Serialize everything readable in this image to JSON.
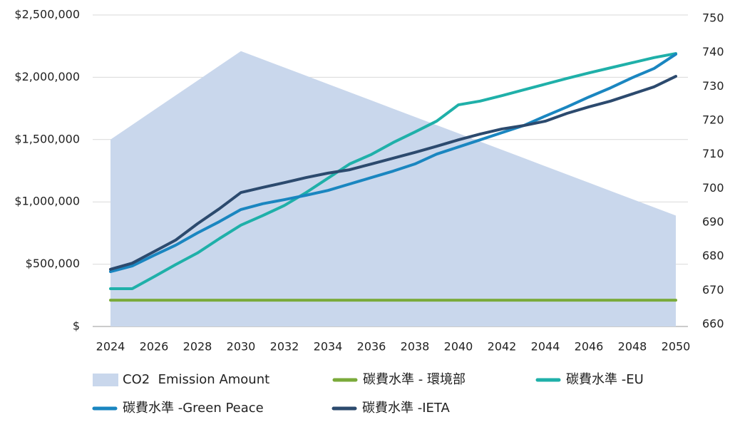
{
  "chart_data": {
    "type": "line",
    "x": [
      2024,
      2025,
      2026,
      2027,
      2028,
      2029,
      2030,
      2031,
      2032,
      2033,
      2034,
      2035,
      2036,
      2037,
      2038,
      2039,
      2040,
      2041,
      2042,
      2043,
      2044,
      2045,
      2046,
      2047,
      2048,
      2049,
      2050
    ],
    "xlim": [
      2024,
      2050
    ],
    "xticks": [
      2024,
      2026,
      2028,
      2030,
      2032,
      2034,
      2036,
      2038,
      2040,
      2042,
      2044,
      2046,
      2048,
      2050
    ],
    "ylim": [
      0,
      2500000
    ],
    "yticks": [
      {
        "value": 0,
        "label": "$"
      },
      {
        "value": 500000,
        "label": "$500,000"
      },
      {
        "value": 1000000,
        "label": "$1,000,000"
      },
      {
        "value": 1500000,
        "label": "$1,500,000"
      },
      {
        "value": 2000000,
        "label": "$2,000,000"
      },
      {
        "value": 2500000,
        "label": "$2,500,000"
      }
    ],
    "y2lim": [
      660,
      750
    ],
    "y2ticks": [
      660,
      670,
      680,
      690,
      700,
      710,
      720,
      730,
      740,
      750
    ],
    "grid": true,
    "legend": "bottom",
    "series": [
      {
        "name": "CO2  Emission Amount",
        "type": "area",
        "color": "#c9d7ec",
        "values": [
          1500000,
          1618000,
          1737000,
          1855000,
          1973000,
          2092000,
          2210000,
          2144000,
          2078000,
          2012000,
          1946000,
          1880000,
          1814000,
          1748000,
          1682000,
          1616000,
          1550000,
          1484000,
          1418000,
          1352000,
          1286000,
          1220000,
          1154000,
          1088000,
          1022000,
          956000,
          890000
        ]
      },
      {
        "name": "碳費水準 - 環境部",
        "type": "line",
        "axis": "y2",
        "color": "#7aaa3a",
        "values": [
          667.1,
          667.1,
          667.1,
          667.1,
          667.1,
          667.1,
          667.1,
          667.1,
          667.1,
          667.1,
          667.1,
          667.1,
          667.1,
          667.1,
          667.1,
          667.1,
          667.1,
          667.1,
          667.1,
          667.1,
          667.1,
          667.1,
          667.1,
          667.1,
          667.1,
          667.1,
          667.1
        ]
      },
      {
        "name": "碳費水準 -EU",
        "type": "line",
        "axis": "y2",
        "color": "#1fb0a9",
        "values": [
          670.5,
          670.5,
          674,
          677.6,
          681,
          685.2,
          689.2,
          692,
          695,
          698.8,
          703,
          707.2,
          710,
          713.5,
          716.6,
          719.8,
          724.6,
          725.7,
          727.3,
          729,
          730.7,
          732.4,
          734,
          735.5,
          737,
          738.5,
          739.7
        ]
      },
      {
        "name": "碳費水準 -Green Peace",
        "type": "line",
        "axis": "y2",
        "color": "#1a86c0",
        "values": [
          675.5,
          677.2,
          680.3,
          683.3,
          686.9,
          690.2,
          693.8,
          695.5,
          696.7,
          698,
          699.4,
          701.3,
          703.2,
          705.1,
          707.2,
          710.1,
          712.2,
          714.3,
          716.4,
          718.5,
          721.3,
          724,
          726.9,
          729.6,
          732.6,
          735.3,
          739.5
        ]
      },
      {
        "name": "碳費水準 -IETA",
        "type": "line",
        "axis": "y2",
        "color": "#2c4a6e",
        "values": [
          676.2,
          678,
          681.4,
          684.8,
          689.6,
          694,
          698.8,
          700.3,
          701.7,
          703.2,
          704.5,
          705.5,
          707.2,
          708.9,
          710.6,
          712.4,
          714.3,
          716,
          717.5,
          718.5,
          719.8,
          722.1,
          724,
          725.7,
          727.8,
          729.9,
          733
        ]
      }
    ]
  }
}
